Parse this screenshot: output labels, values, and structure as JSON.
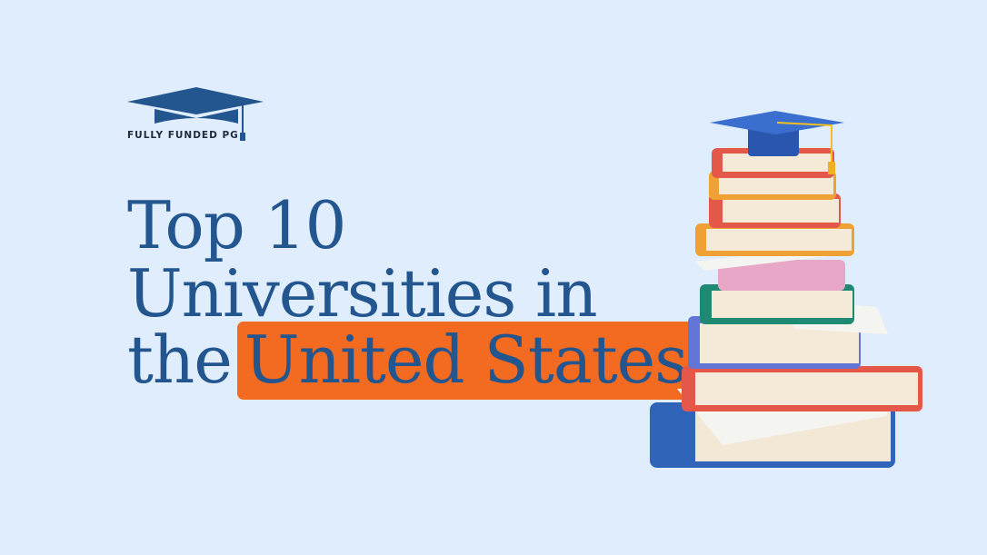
{
  "logo": {
    "text": "FULLY FUNDED PG",
    "icon": "graduation-cap-icon"
  },
  "headline": {
    "line1": "Top 10",
    "line2": "Universities in",
    "line3_prefix": "the",
    "line3_highlight": "United States"
  },
  "colors": {
    "background": "#e0edfc",
    "text": "#23558f",
    "highlight": "#f26b21"
  },
  "illustration": "stack-of-books-with-graduation-cap"
}
